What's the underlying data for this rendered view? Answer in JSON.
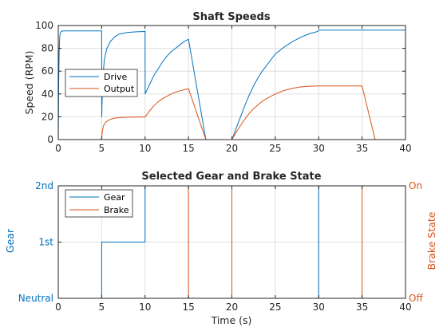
{
  "colors": {
    "blue": "#0072BD",
    "orange": "#D95319",
    "axis": "#262626",
    "grid": "#dfdfdf"
  },
  "chart_data": [
    {
      "type": "line",
      "title": "Shaft Speeds",
      "xlabel": "",
      "ylabel": "Speed (RPM)",
      "xlim": [
        0,
        40
      ],
      "ylim": [
        0,
        100
      ],
      "xticks": [
        0,
        5,
        10,
        15,
        20,
        25,
        30,
        35,
        40
      ],
      "xtick_labels": [
        "0",
        "5",
        "10",
        "15",
        "20",
        "25",
        "30",
        "35",
        "40"
      ],
      "yticks": [
        0,
        20,
        40,
        60,
        80,
        100
      ],
      "ytick_labels": [
        "0",
        "20",
        "40",
        "60",
        "80",
        "100"
      ],
      "grid": true,
      "legend_position": "middle-left",
      "series": [
        {
          "name": "Drive",
          "color": "#0072BD",
          "x": [
            0,
            0.05,
            0.1,
            0.15,
            0.2,
            0.3,
            0.4,
            0.6,
            1,
            5,
            5.01,
            5.1,
            5.3,
            5.6,
            6,
            6.5,
            7,
            8,
            9,
            10,
            10.01,
            10.5,
            11,
            11.5,
            12,
            12.5,
            13,
            13.5,
            14,
            14.5,
            15,
            17,
            20,
            20.5,
            21,
            21.5,
            22,
            22.5,
            23,
            23.5,
            24,
            24.5,
            25,
            26,
            27,
            28,
            29,
            29.9,
            30,
            35,
            40
          ],
          "y": [
            0,
            50,
            75,
            87,
            92,
            94.5,
            95,
            95.3,
            95.3,
            95.3,
            20,
            50,
            70,
            80,
            86,
            90,
            92.5,
            94,
            94.5,
            94.8,
            40,
            48,
            56,
            62,
            68,
            73,
            77,
            80,
            83,
            86,
            88,
            0,
            0,
            10,
            20,
            30,
            39,
            47,
            54,
            60,
            65,
            70,
            75,
            81,
            86,
            90,
            93,
            94.8,
            96,
            96,
            96
          ]
        },
        {
          "name": "Output",
          "color": "#D95319",
          "x": [
            0,
            5,
            5.05,
            5.2,
            5.5,
            6,
            6.5,
            7,
            8,
            9,
            10,
            10.5,
            11,
            11.5,
            12,
            12.5,
            13,
            13.5,
            14,
            14.5,
            15,
            17,
            20,
            20.5,
            21,
            21.5,
            22,
            22.5,
            23,
            23.5,
            24,
            25,
            26,
            27,
            28,
            29,
            30,
            35,
            36.5,
            40
          ],
          "y": [
            0,
            0,
            6,
            12,
            15.5,
            17.8,
            18.8,
            19.3,
            19.7,
            19.8,
            19.8,
            25,
            29.5,
            33,
            35.8,
            38,
            40,
            41.5,
            42.7,
            43.8,
            44.6,
            0,
            0,
            6.5,
            12.5,
            18,
            23,
            27,
            30.5,
            33.5,
            36,
            40,
            43,
            45,
            46.2,
            46.8,
            47,
            47,
            0,
            0
          ]
        }
      ]
    },
    {
      "type": "line",
      "title": "Selected Gear and Brake State",
      "xlabel": "Time (s)",
      "ylabel": "Gear",
      "ylabel_right": "Brake State",
      "xlim": [
        0,
        40
      ],
      "ylim": [
        0,
        2
      ],
      "xticks": [
        0,
        5,
        10,
        15,
        20,
        25,
        30,
        35,
        40
      ],
      "xtick_labels": [
        "0",
        "5",
        "10",
        "15",
        "20",
        "25",
        "30",
        "35",
        "40"
      ],
      "yticks": [
        0,
        1,
        2
      ],
      "ytick_labels": [
        "Neutral",
        "1st",
        "2nd"
      ],
      "yticks_right": [
        0,
        1
      ],
      "ytick_labels_right": [
        "Off",
        "On"
      ],
      "grid": true,
      "legend_position": "top-left",
      "series": [
        {
          "name": "Gear",
          "color": "#0072BD",
          "axis": "left",
          "x": [
            0,
            5,
            5,
            10,
            10,
            30,
            30,
            40
          ],
          "y": [
            0,
            0,
            1,
            1,
            2,
            2,
            0,
            0
          ]
        },
        {
          "name": "Brake",
          "color": "#D95319",
          "axis": "right",
          "x": [
            0,
            15,
            15,
            20,
            20,
            35,
            35,
            40
          ],
          "y": [
            0,
            0,
            1,
            1,
            0,
            0,
            1,
            1
          ]
        }
      ]
    }
  ]
}
